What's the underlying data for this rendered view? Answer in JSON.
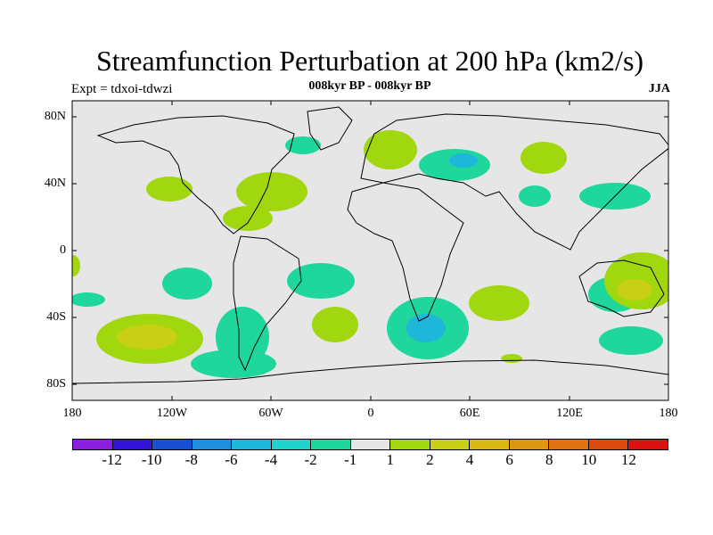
{
  "title": "Streamfunction Perturbation at 200 hPa (km2/s)",
  "expt_label": "Expt = tdxoi-tdwzi",
  "subtitle": "008kyr BP - 008kyr BP",
  "season": "JJA",
  "lat_labels": [
    "80N",
    "40N",
    "0",
    "40S",
    "80S"
  ],
  "lon_labels": [
    "180",
    "120W",
    "60W",
    "0",
    "60E",
    "120E",
    "180"
  ],
  "colorbar": {
    "colors": [
      "#8a1fe0",
      "#3414d8",
      "#1a4fd2",
      "#1f8edb",
      "#1eb6d9",
      "#20d2cc",
      "#1fd69c",
      "#e6e6e6",
      "#a0d70f",
      "#c8cf14",
      "#dab814",
      "#dc9712",
      "#dc7212",
      "#dc4a12",
      "#dc1212"
    ],
    "labels": [
      "-12",
      "-10",
      "-8",
      "-6",
      "-4",
      "-2",
      "-1",
      "1",
      "2",
      "4",
      "6",
      "8",
      "10",
      "12"
    ]
  },
  "colors": {
    "background": "#e6e6e6",
    "land_outline": "#000000"
  }
}
